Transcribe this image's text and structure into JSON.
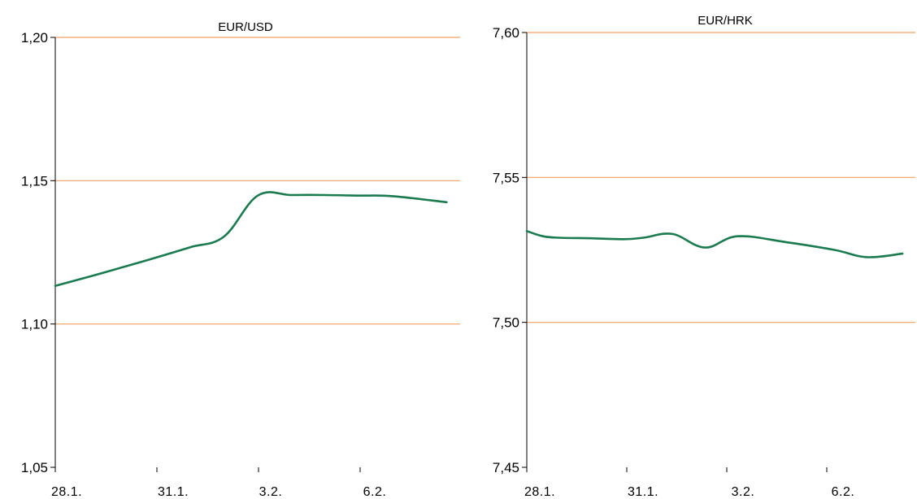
{
  "colors": {
    "grid": "#f0a060",
    "line": "#1a7a50",
    "axis": "#000000"
  },
  "chart_data": [
    {
      "type": "line",
      "title": "EUR/USD",
      "xlabel": "",
      "ylabel": "",
      "x_tick_labels": [
        "28.1.",
        "31.1.",
        "3.2.",
        "6.2."
      ],
      "x_tick_days": [
        0,
        3,
        6,
        9
      ],
      "xlim": [
        0,
        12
      ],
      "y_tick_labels": [
        "1,05",
        "1,10",
        "1,15",
        "1,20"
      ],
      "y_ticks": [
        1.05,
        1.1,
        1.15,
        1.2
      ],
      "ylim": [
        1.05,
        1.2
      ],
      "grid": true,
      "series": [
        {
          "x": [
            0,
            1,
            2,
            3,
            4,
            5,
            6,
            7,
            8,
            9,
            10,
            11.6
          ],
          "y": [
            1.1133,
            1.1165,
            1.1198,
            1.1232,
            1.1268,
            1.1305,
            1.1448,
            1.145,
            1.145,
            1.1448,
            1.1446,
            1.1425
          ]
        }
      ]
    },
    {
      "type": "line",
      "title": "EUR/HRK",
      "xlabel": "",
      "ylabel": "",
      "x_tick_labels": [
        "28.1.",
        "31.1.",
        "3.2.",
        "6.2."
      ],
      "x_tick_days": [
        0,
        3,
        6,
        9
      ],
      "xlim": [
        0,
        12
      ],
      "y_tick_labels": [
        "7,45",
        "7,50",
        "7,55",
        "7,60"
      ],
      "y_ticks": [
        7.45,
        7.5,
        7.55,
        7.6
      ],
      "ylim": [
        7.45,
        7.6
      ],
      "grid": true,
      "series": [
        {
          "x": [
            0,
            0.5,
            1,
            2,
            3,
            3.6,
            4.5,
            5.5,
            6.5,
            8,
            9.5,
            10.5,
            11.6
          ],
          "y": [
            7.5315,
            7.5297,
            7.5292,
            7.529,
            7.5287,
            7.5292,
            7.5305,
            7.5258,
            7.5297,
            7.5277,
            7.525,
            7.5225,
            7.5237
          ]
        }
      ]
    }
  ]
}
